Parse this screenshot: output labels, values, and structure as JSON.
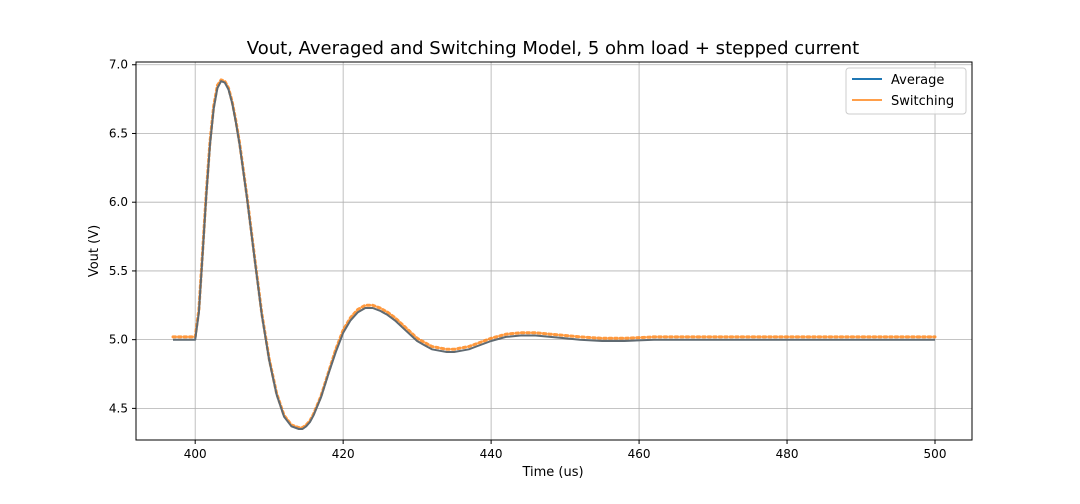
{
  "chart_data": {
    "type": "line",
    "title": "Vout, Averaged and Switching Model, 5 ohm load + stepped current",
    "xlabel": "Time (us)",
    "ylabel": "Vout (V)",
    "xlim": [
      392,
      505
    ],
    "ylim": [
      4.27,
      7.02
    ],
    "xticks": [
      400,
      420,
      440,
      460,
      480,
      500
    ],
    "xtick_labels": [
      "400",
      "420",
      "440",
      "460",
      "480",
      "500"
    ],
    "yticks": [
      4.5,
      5.0,
      5.5,
      6.0,
      6.5,
      7.0
    ],
    "ytick_labels": [
      "4.5",
      "5.0",
      "5.5",
      "6.0",
      "6.5",
      "7.0"
    ],
    "grid": true,
    "legend_position": "top-right",
    "colors": {
      "average": "#1f77b4",
      "switching": "#ff7f0e",
      "overlap": "#5f6a72"
    },
    "series": [
      {
        "name": "Average",
        "style": "solid",
        "x": [
          397,
          398,
          399,
          400,
          400.5,
          401,
          401.5,
          402,
          402.5,
          403,
          403.5,
          404,
          404.5,
          405,
          405.5,
          406,
          407,
          408,
          409,
          410,
          411,
          412,
          413,
          414,
          414.5,
          415,
          415.5,
          416,
          417,
          418,
          419,
          420,
          421,
          422,
          423,
          424,
          425,
          426,
          427,
          428,
          429,
          430,
          431,
          432,
          433,
          434,
          435,
          436,
          437,
          438,
          440,
          442,
          444,
          446,
          448,
          450,
          452,
          455,
          458,
          462,
          466,
          470,
          480,
          490,
          500
        ],
        "y": [
          5.0,
          5.0,
          5.0,
          5.0,
          5.2,
          5.62,
          6.05,
          6.42,
          6.68,
          6.83,
          6.88,
          6.87,
          6.82,
          6.72,
          6.58,
          6.42,
          6.03,
          5.6,
          5.18,
          4.85,
          4.6,
          4.44,
          4.37,
          4.35,
          4.35,
          4.37,
          4.4,
          4.45,
          4.58,
          4.75,
          4.91,
          5.05,
          5.14,
          5.2,
          5.23,
          5.23,
          5.21,
          5.18,
          5.14,
          5.09,
          5.04,
          4.99,
          4.96,
          4.93,
          4.92,
          4.91,
          4.91,
          4.92,
          4.93,
          4.95,
          4.99,
          5.02,
          5.03,
          5.03,
          5.02,
          5.01,
          5.0,
          4.99,
          4.99,
          5.0,
          5.0,
          5.0,
          5.0,
          5.0,
          5.0
        ]
      },
      {
        "name": "Switching",
        "style": "dotted",
        "x": [
          397,
          398,
          399,
          400,
          400.5,
          401,
          401.5,
          402,
          402.5,
          403,
          403.5,
          404,
          404.5,
          405,
          405.5,
          406,
          407,
          408,
          409,
          410,
          411,
          412,
          413,
          414,
          414.5,
          415,
          415.5,
          416,
          417,
          418,
          419,
          420,
          421,
          422,
          423,
          424,
          425,
          426,
          427,
          428,
          429,
          430,
          431,
          432,
          433,
          434,
          435,
          436,
          437,
          438,
          440,
          442,
          444,
          446,
          448,
          450,
          452,
          455,
          458,
          462,
          466,
          470,
          480,
          490,
          500
        ],
        "y": [
          5.02,
          5.02,
          5.02,
          5.02,
          5.22,
          5.64,
          6.07,
          6.44,
          6.7,
          6.85,
          6.89,
          6.88,
          6.83,
          6.73,
          6.59,
          6.43,
          6.04,
          5.61,
          5.19,
          4.86,
          4.61,
          4.45,
          4.38,
          4.36,
          4.36,
          4.38,
          4.41,
          4.46,
          4.59,
          4.76,
          4.93,
          5.07,
          5.16,
          5.22,
          5.25,
          5.25,
          5.23,
          5.2,
          5.16,
          5.11,
          5.06,
          5.01,
          4.98,
          4.95,
          4.94,
          4.93,
          4.93,
          4.94,
          4.95,
          4.97,
          5.01,
          5.04,
          5.05,
          5.05,
          5.04,
          5.03,
          5.02,
          5.01,
          5.01,
          5.02,
          5.02,
          5.02,
          5.02,
          5.02,
          5.02
        ]
      }
    ]
  }
}
